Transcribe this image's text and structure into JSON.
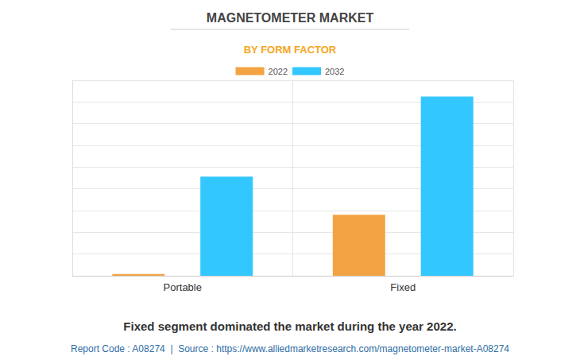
{
  "chart_data": {
    "type": "bar",
    "title": "MAGNETOMETER MARKET",
    "subtitle": "BY FORM FACTOR",
    "categories": [
      "Portable",
      "Fixed"
    ],
    "series": [
      {
        "name": "2022",
        "color": "#f2a444",
        "values": [
          0.08,
          2.81
        ]
      },
      {
        "name": "2032",
        "color": "#33c7ff",
        "values": [
          4.56,
          8.25
        ]
      }
    ],
    "ylim": [
      0,
      9
    ],
    "yticks": [
      0,
      1,
      2,
      3,
      4,
      5,
      6,
      7,
      8,
      9
    ],
    "grid": true,
    "tick_labels": "x",
    "legend": "top",
    "caption": "Fixed segment dominated the market during the year 2022.",
    "source": "Report Code : A08274  |  Source : https://www.alliedmarketresearch.com/magnetometer-market-A08274"
  }
}
